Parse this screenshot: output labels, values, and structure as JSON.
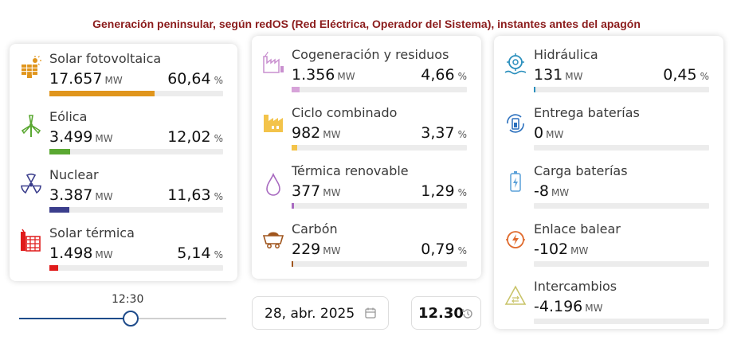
{
  "title": "Generación peninsular, según redOS (Red Eléctrica, Operador del Sistema), instantes antes del apagón",
  "unit_mw": "MW",
  "unit_pct": "%",
  "column1": [
    {
      "label": "Solar fotovoltaica",
      "value": "17.657",
      "percent": "60,64",
      "share": 0.6064,
      "color": "#e0951c",
      "icon": "solar-panel-icon"
    },
    {
      "label": "Eólica",
      "value": "3.499",
      "percent": "12,02",
      "share": 0.1202,
      "color": "#5aa832",
      "icon": "wind-turbine-icon"
    },
    {
      "label": "Nuclear",
      "value": "3.387",
      "percent": "11,63",
      "share": 0.1163,
      "color": "#3b3e8c",
      "icon": "nuclear-icon"
    },
    {
      "label": "Solar térmica",
      "value": "1.498",
      "percent": "5,14",
      "share": 0.0514,
      "color": "#e01b1b",
      "icon": "solar-thermal-icon"
    }
  ],
  "column2": [
    {
      "label": "Cogeneración y residuos",
      "value": "1.356",
      "percent": "4,66",
      "share": 0.0466,
      "color": "#d7a3d9",
      "icon": "cogeneration-icon"
    },
    {
      "label": "Ciclo combinado",
      "value": "982",
      "percent": "3,37",
      "share": 0.0337,
      "color": "#f3c34a",
      "icon": "combined-cycle-icon"
    },
    {
      "label": "Térmica renovable",
      "value": "377",
      "percent": "1,29",
      "share": 0.0129,
      "color": "#a86ac0",
      "icon": "drop-icon"
    },
    {
      "label": "Carbón",
      "value": "229",
      "percent": "0,79",
      "share": 0.0079,
      "color": "#a0561e",
      "icon": "coal-cart-icon"
    }
  ],
  "column3": [
    {
      "label": "Hidráulica",
      "value": "131",
      "percent": "0,45",
      "share": 0.0045,
      "color": "#2a8fbd",
      "icon": "hydro-icon"
    },
    {
      "label": "Entrega baterías",
      "value": "0",
      "color": "#2a6fbd",
      "icon": "battery-delivery-icon"
    },
    {
      "label": "Carga baterías",
      "value": "-8",
      "color": "#5aa0d8",
      "icon": "battery-charge-icon"
    },
    {
      "label": "Enlace balear",
      "value": "-102",
      "color": "#e06a2c",
      "icon": "balearic-link-icon"
    },
    {
      "label": "Intercambios",
      "value": "-4.196",
      "color": "#c9c46a",
      "icon": "exchange-icon"
    }
  ],
  "slider": {
    "label": "12:30",
    "position": 0.54
  },
  "date": "28, abr. 2025",
  "time": "12.30"
}
